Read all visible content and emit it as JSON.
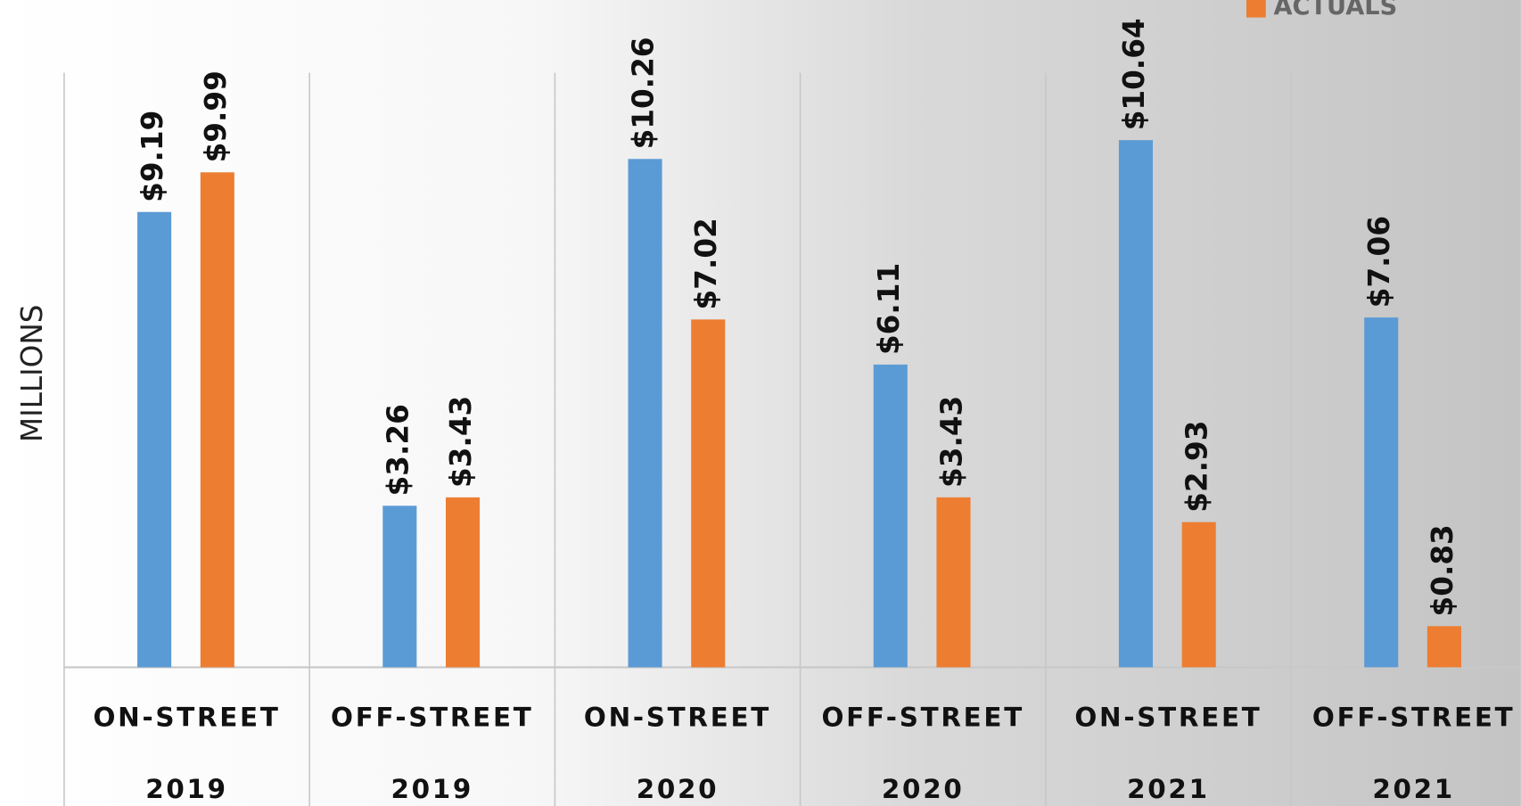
{
  "chart_data": {
    "type": "bar",
    "y_axis_label": "MILLIONS",
    "categories": [
      "ON-STREET",
      "OFF-STREET",
      "ON-STREET",
      "OFF-STREET",
      "ON-STREET",
      "OFF-STREET"
    ],
    "years": [
      "2019",
      "2019",
      "2020",
      "2020",
      "2021",
      "2021"
    ],
    "series": [
      {
        "color": "#5b9bd5",
        "values": [
          9.19,
          3.26,
          10.26,
          6.11,
          10.64,
          7.06
        ],
        "value_labels": [
          "$9.19",
          "$3.26",
          "$10.26",
          "$6.11",
          "$10.64",
          "$7.06"
        ]
      },
      {
        "name": "ACTUALS",
        "color": "#ed7d31",
        "values": [
          9.99,
          3.43,
          7.02,
          3.43,
          2.93,
          0.83
        ],
        "value_labels": [
          "$9.99",
          "$3.43",
          "$7.02",
          "$3.43",
          "$2.93",
          "$0.83"
        ]
      }
    ],
    "ylim": [
      0,
      12
    ]
  }
}
